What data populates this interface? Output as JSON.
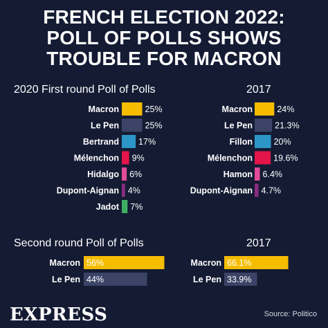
{
  "header": {
    "title_lines": [
      "FRENCH ELECTION 2022:",
      "POLL OF POLLS SHOWS",
      "TROUBLE FOR MACRON"
    ]
  },
  "footer": {
    "brand": "EXPRESS",
    "source": "Source: Politico"
  },
  "colors": {
    "background": "#141b33",
    "macron": "#f5bc00",
    "lepen": "#3b4467",
    "bertrand_fillon": "#2d96c8",
    "melenchon": "#e3154a",
    "hidalgo_hamon": "#e14c9a",
    "dupont_aignan": "#8a2d82",
    "jadot": "#3fae62"
  },
  "chart_data": [
    {
      "type": "bar",
      "title": "2020 First round Poll of Polls",
      "categories": [
        "Macron",
        "Le  Pen",
        "Bertrand",
        "Mélenchon",
        "Hidalgo",
        "Dupont-Aignan",
        "Jadot"
      ],
      "values": [
        25,
        25,
        17,
        9,
        6,
        4,
        7
      ],
      "labels": [
        "25%",
        "25%",
        "17%",
        "9%",
        "6%",
        "4%",
        "7%"
      ],
      "colors": [
        "#f5bc00",
        "#3b4467",
        "#2d96c8",
        "#e3154a",
        "#e14c9a",
        "#8a2d82",
        "#3fae62"
      ],
      "label_inside": false
    },
    {
      "type": "bar",
      "title": "2017",
      "categories": [
        "Macron",
        "Le  Pen",
        "Fillon",
        "Mélenchon",
        "Hamon",
        "Dupont-Aignan"
      ],
      "values": [
        24,
        21.3,
        20,
        19.6,
        6.4,
        4.7
      ],
      "labels": [
        "24%",
        "21.3%",
        "20%",
        "19.6%",
        "6.4%",
        "4.7%"
      ],
      "colors": [
        "#f5bc00",
        "#3b4467",
        "#2d96c8",
        "#e3154a",
        "#e14c9a",
        "#8a2d82"
      ],
      "label_inside": false
    },
    {
      "type": "bar",
      "title": "Second round Poll of Polls",
      "categories": [
        "Macron",
        "Le  Pen"
      ],
      "values": [
        56,
        44
      ],
      "labels": [
        "56%",
        "44%"
      ],
      "colors": [
        "#f5bc00",
        "#3b4467"
      ],
      "label_inside": true
    },
    {
      "type": "bar",
      "title": "2017",
      "categories": [
        "Macron",
        "Le  Pen"
      ],
      "values": [
        66.1,
        33.9
      ],
      "labels": [
        "66.1%",
        "33.9%"
      ],
      "colors": [
        "#f5bc00",
        "#3b4467"
      ],
      "label_inside": true
    }
  ]
}
